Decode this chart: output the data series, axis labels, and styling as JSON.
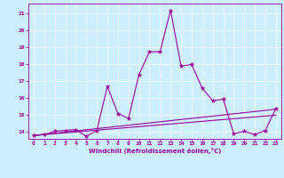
{
  "title": "",
  "xlabel": "Windchill (Refroidissement éolien,°C)",
  "bg_color": "#cceeff",
  "line_color": "#990099",
  "xlim": [
    -0.5,
    23.5
  ],
  "ylim": [
    13.6,
    21.6
  ],
  "xticks": [
    0,
    1,
    2,
    3,
    4,
    5,
    6,
    7,
    8,
    9,
    10,
    11,
    12,
    13,
    14,
    15,
    16,
    17,
    18,
    19,
    20,
    21,
    22,
    23
  ],
  "yticks": [
    14,
    15,
    16,
    17,
    18,
    19,
    20,
    21
  ],
  "line1_x": [
    0,
    1,
    2,
    3,
    4,
    5,
    6,
    7,
    8,
    9,
    10,
    11,
    12,
    13,
    14,
    15,
    16,
    17,
    18,
    19,
    20,
    21,
    22,
    23
  ],
  "line1_y": [
    13.8,
    13.85,
    14.05,
    14.1,
    14.15,
    13.75,
    14.1,
    16.7,
    15.1,
    14.8,
    17.4,
    18.75,
    18.75,
    21.2,
    17.9,
    18.0,
    16.6,
    15.85,
    15.95,
    13.9,
    14.05,
    13.85,
    14.1,
    15.4
  ],
  "line2_x": [
    0,
    23
  ],
  "line2_y": [
    13.8,
    15.35
  ],
  "line3_x": [
    0,
    23
  ],
  "line3_y": [
    13.8,
    15.0
  ]
}
